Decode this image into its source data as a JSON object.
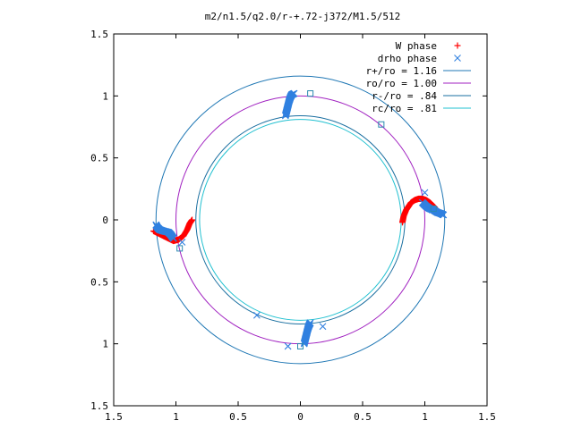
{
  "chart_data": {
    "type": "scatter",
    "title": "m2/n1.5/q2.0/r-+.72-j372/M1.5/512",
    "xlabel": "",
    "ylabel": "",
    "xlim": [
      -1.5,
      1.5
    ],
    "ylim": [
      -1.5,
      1.5
    ],
    "x_ticks": [
      -1.5,
      -1,
      -0.5,
      0,
      0.5,
      1,
      1.5
    ],
    "x_tick_labels": [
      "1.5",
      "1",
      "0.5",
      "0",
      "0.5",
      "1",
      "1.5"
    ],
    "y_ticks": [
      1.5,
      1,
      0.5,
      0,
      -0.5,
      -1,
      -1.5
    ],
    "y_tick_labels": [
      "1.5",
      "1",
      "0.5",
      "0",
      "0.5",
      "1",
      "1.5"
    ],
    "grid": false,
    "legend_position": "top-right",
    "circles": [
      {
        "name": "r+/ro = 1.16",
        "radius": 1.16,
        "color": "#1f77b4"
      },
      {
        "name": "ro/ro = 1.00",
        "radius": 1.0,
        "color": "#a020c0"
      },
      {
        "name": "r-/ro = .84",
        "radius": 0.84,
        "color": "#1a6fa0"
      },
      {
        "name": "rc/ro = .81",
        "radius": 0.81,
        "color": "#20c0d0"
      }
    ],
    "series": [
      {
        "name": "W phase",
        "marker": "+",
        "color": "#ff0000",
        "segments": [
          [
            [
              0.82,
              -0.02
            ],
            [
              0.83,
              0.03
            ],
            [
              0.85,
              0.08
            ],
            [
              0.87,
              0.11
            ],
            [
              0.89,
              0.14
            ],
            [
              0.92,
              0.16
            ],
            [
              0.95,
              0.17
            ],
            [
              0.98,
              0.17
            ],
            [
              1.01,
              0.16
            ],
            [
              1.04,
              0.14
            ],
            [
              1.06,
              0.12
            ],
            [
              1.08,
              0.1
            ]
          ],
          [
            [
              -1.18,
              -0.09
            ],
            [
              -1.14,
              -0.11
            ],
            [
              -1.1,
              -0.13
            ],
            [
              -1.06,
              -0.15
            ],
            [
              -1.02,
              -0.17
            ],
            [
              -0.98,
              -0.16
            ],
            [
              -0.94,
              -0.13
            ],
            [
              -0.91,
              -0.08
            ],
            [
              -0.89,
              -0.03
            ],
            [
              -0.87,
              0.0
            ]
          ]
        ]
      },
      {
        "name": "drho phase",
        "marker": "x",
        "color": "#3080e0",
        "segments": [
          [
            [
              -0.12,
              0.84
            ],
            [
              -0.11,
              0.88
            ],
            [
              -0.1,
              0.92
            ],
            [
              -0.09,
              0.96
            ],
            [
              -0.08,
              0.99
            ],
            [
              -0.07,
              1.01
            ],
            [
              -0.05,
              1.02
            ]
          ],
          [
            [
              0.03,
              -1.0
            ],
            [
              0.04,
              -0.96
            ],
            [
              0.05,
              -0.92
            ],
            [
              0.06,
              -0.88
            ],
            [
              0.07,
              -0.85
            ],
            [
              0.08,
              -0.83
            ]
          ],
          [
            [
              -1.16,
              -0.04
            ],
            [
              -1.15,
              -0.06
            ],
            [
              -1.13,
              -0.08
            ],
            [
              -1.1,
              -0.09
            ],
            [
              -1.06,
              -0.1
            ],
            [
              -1.04,
              -0.12
            ],
            [
              -1.02,
              -0.15
            ]
          ],
          [
            [
              0.98,
              0.14
            ],
            [
              1.01,
              0.11
            ],
            [
              1.04,
              0.09
            ],
            [
              1.07,
              0.08
            ],
            [
              1.1,
              0.06
            ],
            [
              1.13,
              0.05
            ],
            [
              1.15,
              0.04
            ]
          ]
        ],
        "points": [
          [
            -0.35,
            -0.77
          ],
          [
            -0.1,
            -1.02
          ],
          [
            0.18,
            -0.86
          ],
          [
            1.0,
            0.22
          ],
          [
            1.06,
            0.08
          ],
          [
            -0.95,
            -0.18
          ]
        ]
      },
      {
        "name": "",
        "marker": "square",
        "color": "#2a8ab0",
        "points": [
          [
            0.08,
            1.02
          ],
          [
            0.65,
            0.77
          ],
          [
            -0.97,
            -0.23
          ],
          [
            0.0,
            -1.02
          ],
          [
            1.07,
            0.09
          ]
        ]
      }
    ]
  }
}
